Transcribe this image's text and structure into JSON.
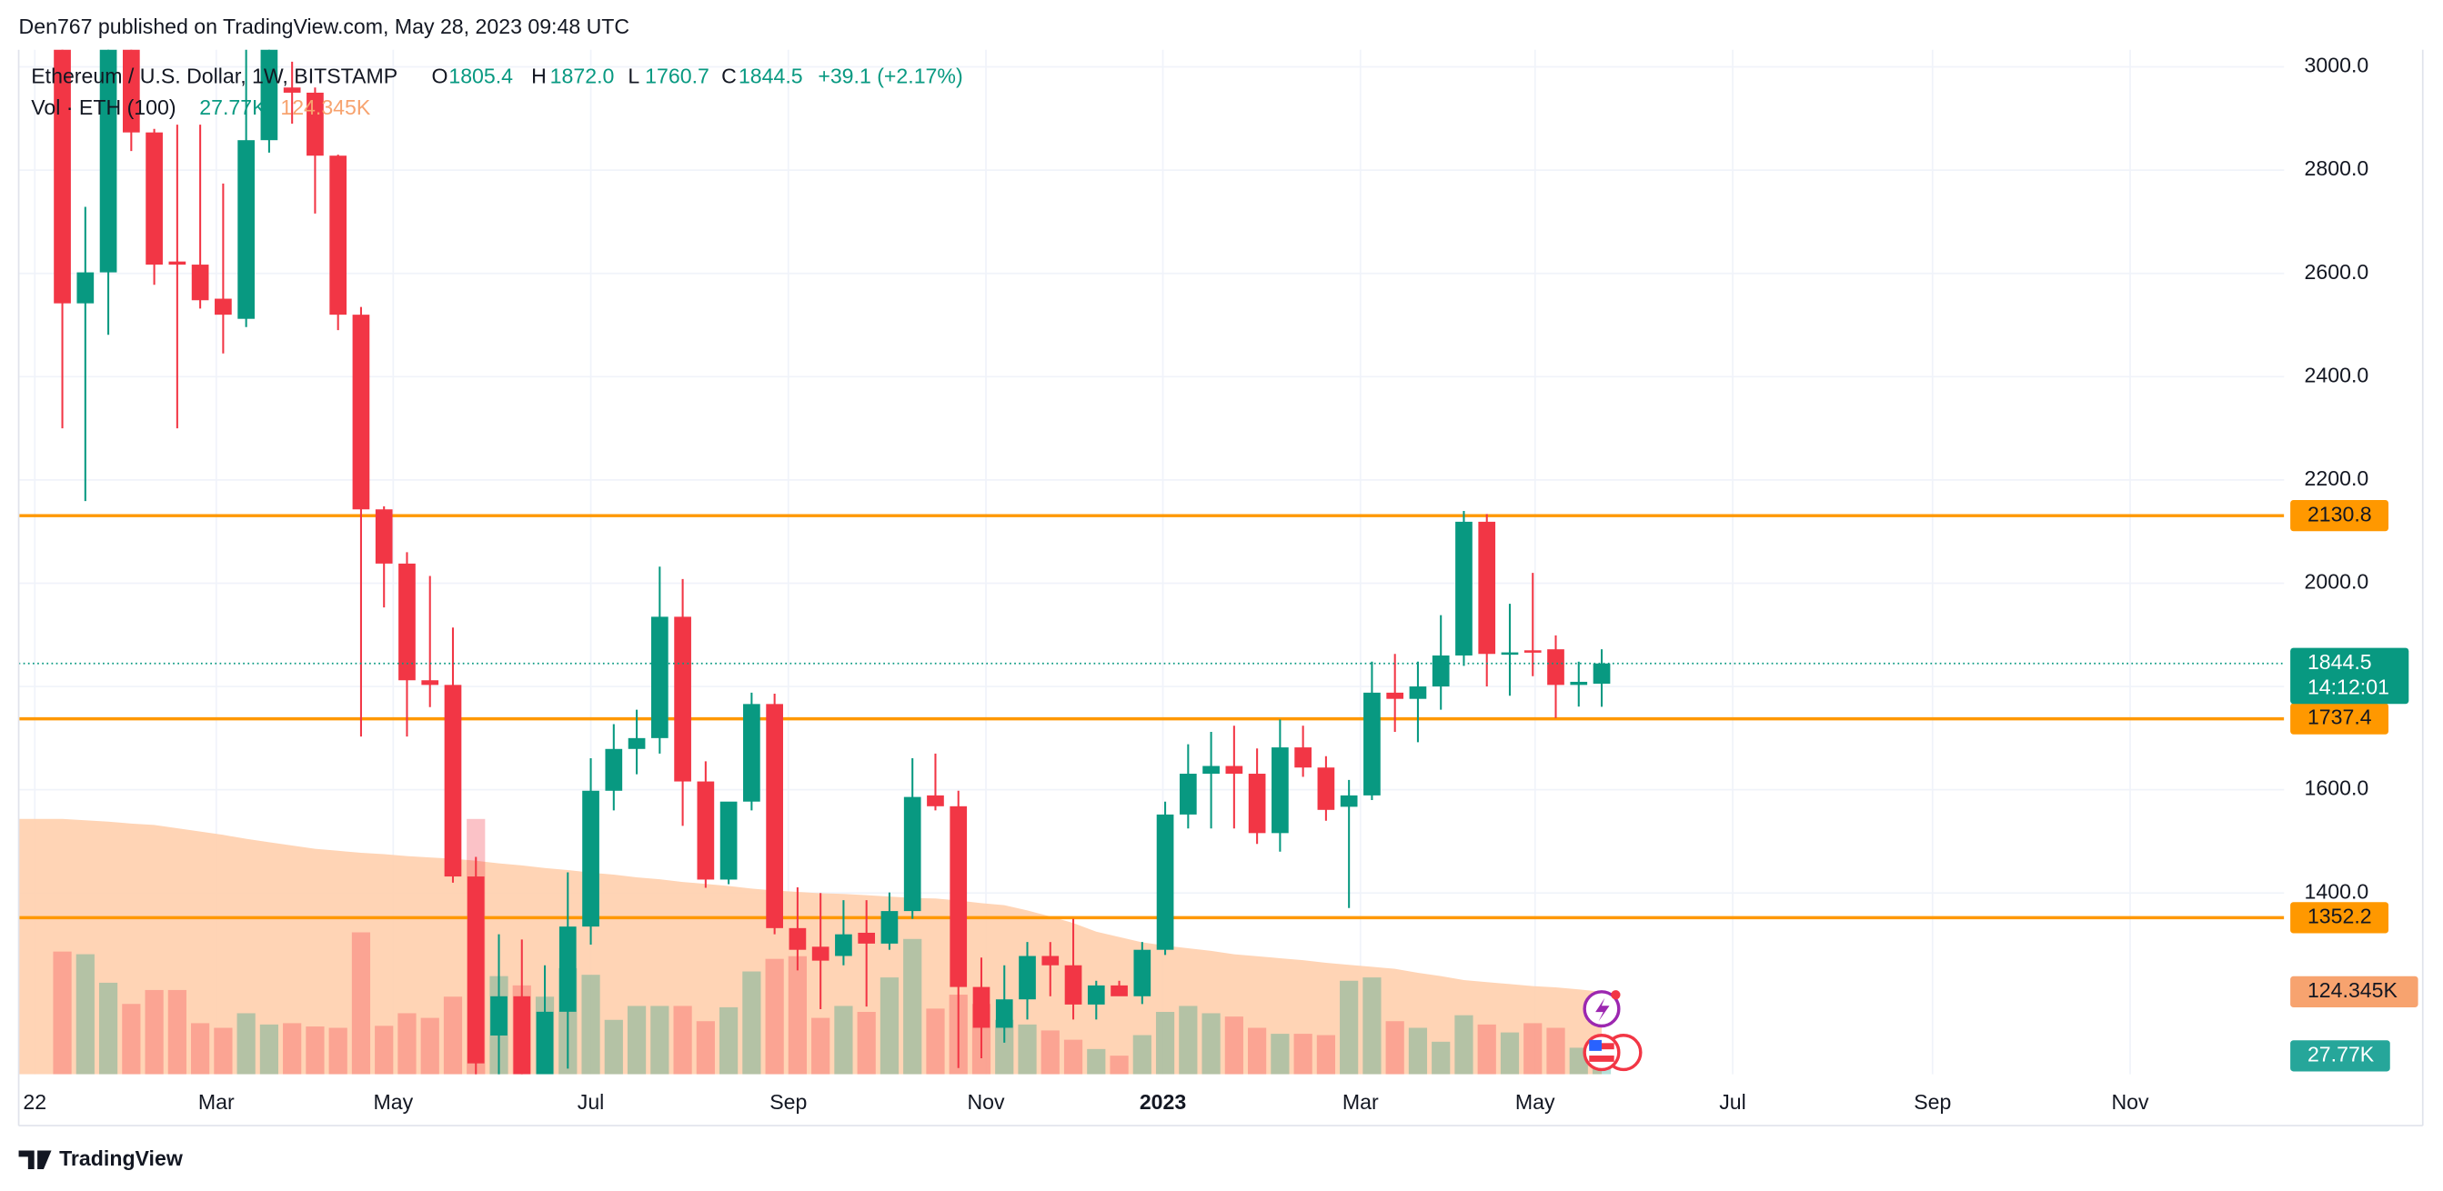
{
  "header": "Den767 published on TradingView.com, May 28, 2023 09:48 UTC",
  "footer": "TradingView",
  "chart_data": {
    "type": "candlestick",
    "legend": {
      "symbol": "Ethereum / U.S. Dollar, 1W, BITSTAMP",
      "o": "O",
      "open": "1805.4",
      "h": "H",
      "high": "1872.0",
      "l": "L",
      "low": "1760.7",
      "c": "C",
      "close": "1844.5",
      "change": "+39.1 (+2.17%)",
      "volume": "Vol · ETH (100)"
    },
    "up_color": "#089981",
    "down_color": "#f23645",
    "level_color": "#ff9800",
    "candles": {
      "open": [
        3200,
        2542,
        2602,
        3100,
        2873,
        2623,
        2617,
        2551,
        2512,
        2858,
        2960,
        2950,
        2828,
        2520,
        2143,
        2038,
        1812,
        1803,
        1432,
        1124,
        1200,
        1049,
        1170,
        1335,
        1598,
        1679,
        1700,
        1935,
        1616,
        1426,
        1577,
        1766,
        1332,
        1296,
        1278,
        1323,
        1302,
        1365,
        1589,
        1568,
        1218,
        1139,
        1194,
        1278,
        1260,
        1184,
        1221,
        1200,
        1290,
        1552,
        1631,
        1646,
        1631,
        1516,
        1682,
        1643,
        1567,
        1589,
        1788,
        1776,
        1800,
        1860,
        2119,
        1863,
        1870,
        1872,
        1803,
        1805.4
      ],
      "high": [
        3300,
        2729,
        3250,
        3200,
        2880,
        2888,
        2888,
        2774,
        3050,
        3250,
        3010,
        2960,
        2830,
        2535,
        2149,
        2060,
        2014,
        1914,
        1470,
        1320,
        1310,
        1260,
        1440,
        1661,
        1727,
        1755,
        2032,
        2008,
        1655,
        1480,
        1788,
        1786,
        1411,
        1400,
        1386,
        1386,
        1401,
        1661,
        1670,
        1598,
        1275,
        1260,
        1305,
        1305,
        1350,
        1230,
        1230,
        1305,
        1577,
        1688,
        1712,
        1724,
        1680,
        1736,
        1724,
        1665,
        1619,
        1848,
        1863,
        1848,
        1938,
        2140,
        2134,
        1960,
        2020,
        1899,
        1848,
        1872
      ],
      "low": [
        2300,
        2159,
        2481,
        2837,
        2578,
        2300,
        2532,
        2445,
        2496,
        2834,
        2890,
        2716,
        2490,
        1703,
        1953,
        1703,
        1760,
        1420,
        880,
        1000,
        1000,
        1060,
        1060,
        1300,
        1560,
        1630,
        1670,
        1530,
        1410,
        1417,
        1560,
        1320,
        1250,
        1175,
        1260,
        1180,
        1290,
        1350,
        1560,
        1061,
        1080,
        1110,
        1155,
        1200,
        1155,
        1155,
        1215,
        1185,
        1280,
        1525,
        1525,
        1525,
        1495,
        1480,
        1625,
        1540,
        1371,
        1580,
        1712,
        1692,
        1755,
        1840,
        1800,
        1782,
        1820,
        1739,
        1761,
        1760.7
      ],
      "close": [
        2542,
        2602,
        3100,
        2873,
        2617,
        2617,
        2548,
        2520,
        2858,
        3100,
        2950,
        2828,
        2520,
        2143,
        2038,
        1812,
        1803,
        1432,
        1070,
        1200,
        1049,
        1170,
        1335,
        1598,
        1679,
        1700,
        1935,
        1616,
        1426,
        1577,
        1766,
        1332,
        1290,
        1269,
        1320,
        1302,
        1365,
        1586,
        1568,
        1218,
        1139,
        1194,
        1278,
        1260,
        1184,
        1221,
        1200,
        1290,
        1552,
        1631,
        1646,
        1631,
        1516,
        1682,
        1643,
        1561,
        1589,
        1788,
        1776,
        1800,
        1860,
        2119,
        1863,
        1866,
        1866,
        1803,
        1809,
        1844.5
      ]
    },
    "volume": [
      185,
      181,
      138,
      106,
      127,
      127,
      77,
      70,
      92,
      75,
      77,
      72,
      70,
      214,
      73,
      92,
      85,
      117,
      385,
      148,
      134,
      117,
      160,
      150,
      82,
      103,
      103,
      103,
      80,
      101,
      155,
      174,
      178,
      85,
      103,
      94,
      146,
      204,
      99,
      120,
      106,
      82,
      75,
      66,
      52,
      38,
      28,
      59,
      94,
      103,
      92,
      87,
      70,
      61,
      61,
      59,
      141,
      146,
      80,
      70,
      49,
      89,
      75,
      63,
      77,
      70,
      40,
      27.77
    ],
    "volume_ma": [
      385,
      383,
      381,
      378,
      376,
      371,
      366,
      361,
      355,
      350,
      345,
      340,
      337,
      334,
      332,
      329,
      327,
      325,
      322,
      318,
      315,
      311,
      308,
      304,
      301,
      297,
      294,
      290,
      287,
      284,
      280,
      277,
      275,
      273,
      272,
      270,
      268,
      266,
      265,
      262,
      258,
      255,
      247,
      238,
      228,
      215,
      207,
      199,
      194,
      190,
      186,
      181,
      178,
      175,
      172,
      168,
      165,
      162,
      159,
      153,
      148,
      142,
      139,
      136,
      133,
      131,
      128,
      124.345
    ],
    "levels": [
      2130.8,
      1737.4,
      1352.2
    ],
    "timer": "14:12:01",
    "xlim": [
      -1.9,
      96.7
    ],
    "xticks": [
      {
        "value": -1.2,
        "label": "22"
      },
      {
        "value": 6.7,
        "label": "Mar"
      },
      {
        "value": 14.4,
        "label": "May"
      },
      {
        "value": 23.0,
        "label": "Jul"
      },
      {
        "value": 31.6,
        "label": "Sep"
      },
      {
        "value": 40.2,
        "label": "Nov"
      },
      {
        "value": 47.9,
        "label": "2023"
      },
      {
        "value": 56.5,
        "label": "Mar"
      },
      {
        "value": 64.1,
        "label": "May"
      },
      {
        "value": 72.7,
        "label": "Jul"
      },
      {
        "value": 81.4,
        "label": "Sep"
      },
      {
        "value": 90.0,
        "label": "Nov"
      }
    ],
    "ylim": [
      1049,
      3033
    ],
    "yticks": [
      {
        "value": 1400,
        "label": "1400.0"
      },
      {
        "value": 1600,
        "label": "1600.0"
      },
      {
        "value": 1800,
        "label": "1800.0"
      },
      {
        "value": 2000,
        "label": "2000.0"
      },
      {
        "value": 2200,
        "label": "2200.0"
      },
      {
        "value": 2400,
        "label": "2400.0"
      },
      {
        "value": 2600,
        "label": "2600.0"
      },
      {
        "value": 2800,
        "label": "2800.0"
      },
      {
        "value": 3000,
        "label": "3000.0"
      }
    ],
    "y2lim": [
      0,
      1545
    ],
    "y2ticks": [
      {
        "value": 124.345,
        "label": "124.345K"
      },
      {
        "value": 27.77,
        "label": "27.77K"
      }
    ],
    "grid": true
  }
}
